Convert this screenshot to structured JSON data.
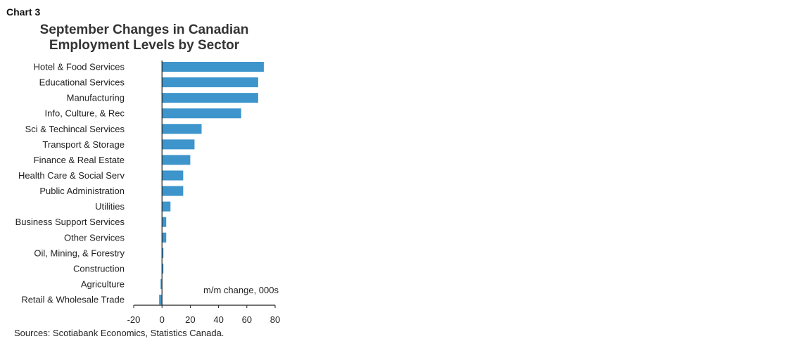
{
  "header": {
    "chart_number": "Chart 3",
    "title_line1": "September Changes in Canadian",
    "title_line2": "Employment Levels by Sector"
  },
  "footer": {
    "source": "Sources: Scotiabank Economics, Statistics Canada."
  },
  "chart_data": {
    "type": "bar",
    "orientation": "horizontal",
    "title": "September Changes in Canadian Employment Levels by Sector",
    "annotation": "m/m change, 000s",
    "categories": [
      "Hotel & Food Services",
      "Educational Services",
      "Manufacturing",
      "Info, Culture, & Rec",
      "Sci & Techincal Services",
      "Transport & Storage",
      "Finance & Real Estate",
      "Health Care & Social Serv",
      "Public Administration",
      "Utilities",
      "Business Support Services",
      "Other Services",
      "Oil, Mining, & Forestry",
      "Construction",
      "Agriculture",
      "Retail & Wholesale Trade"
    ],
    "values": [
      72,
      68,
      68,
      56,
      28,
      23,
      20,
      15,
      15,
      6,
      3,
      3,
      1,
      1,
      -1,
      -2
    ],
    "xlim": [
      -20,
      80
    ],
    "xticks": [
      -20,
      0,
      20,
      40,
      60,
      80
    ],
    "bar_color": "#3d95cc",
    "grid": false,
    "legend": "none"
  }
}
